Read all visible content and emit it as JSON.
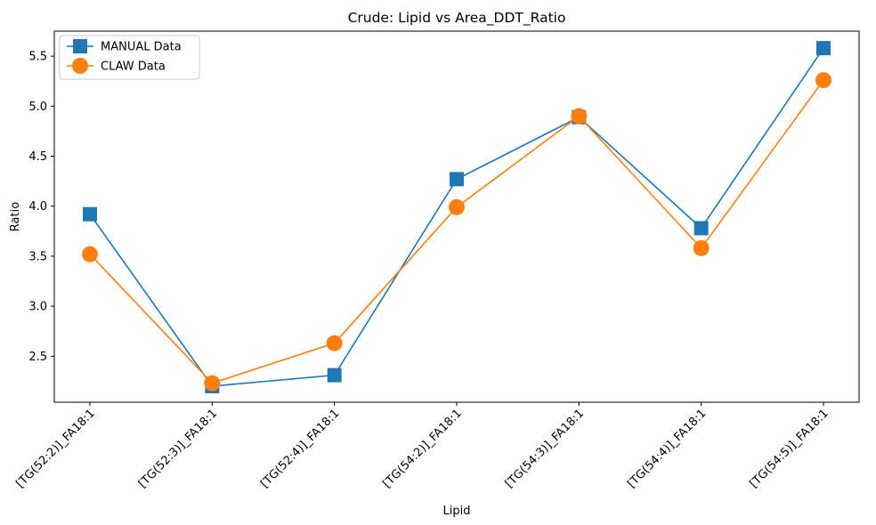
{
  "chart_data": {
    "type": "line",
    "title": "Crude: Lipid vs Area_DDT_Ratio",
    "xlabel": "Lipid",
    "ylabel": "Ratio",
    "categories": [
      "[TG(52:2)]_FA18:1",
      "[TG(52:3)]_FA18:1",
      "[TG(52:4)]_FA18:1",
      "[TG(54:2)]_FA18:1",
      "[TG(54:3)]_FA18:1",
      "[TG(54:4)]_FA18:1",
      "[TG(54:5)]_FA18:1"
    ],
    "ylim": [
      2.04,
      5.75
    ],
    "yticks": [
      "2.5",
      "3.0",
      "3.5",
      "4.0",
      "4.5",
      "5.0",
      "5.5"
    ],
    "series": [
      {
        "name": "MANUAL Data",
        "marker": "square",
        "color": "#1f77b4",
        "values": [
          3.92,
          2.2,
          2.31,
          4.27,
          4.89,
          3.78,
          5.58
        ]
      },
      {
        "name": "CLAW Data",
        "marker": "circle",
        "color": "#ff7f0e",
        "values": [
          3.52,
          2.23,
          2.63,
          3.99,
          4.9,
          3.58,
          5.26
        ]
      }
    ],
    "legend_position": "top-left",
    "grid": false
  }
}
